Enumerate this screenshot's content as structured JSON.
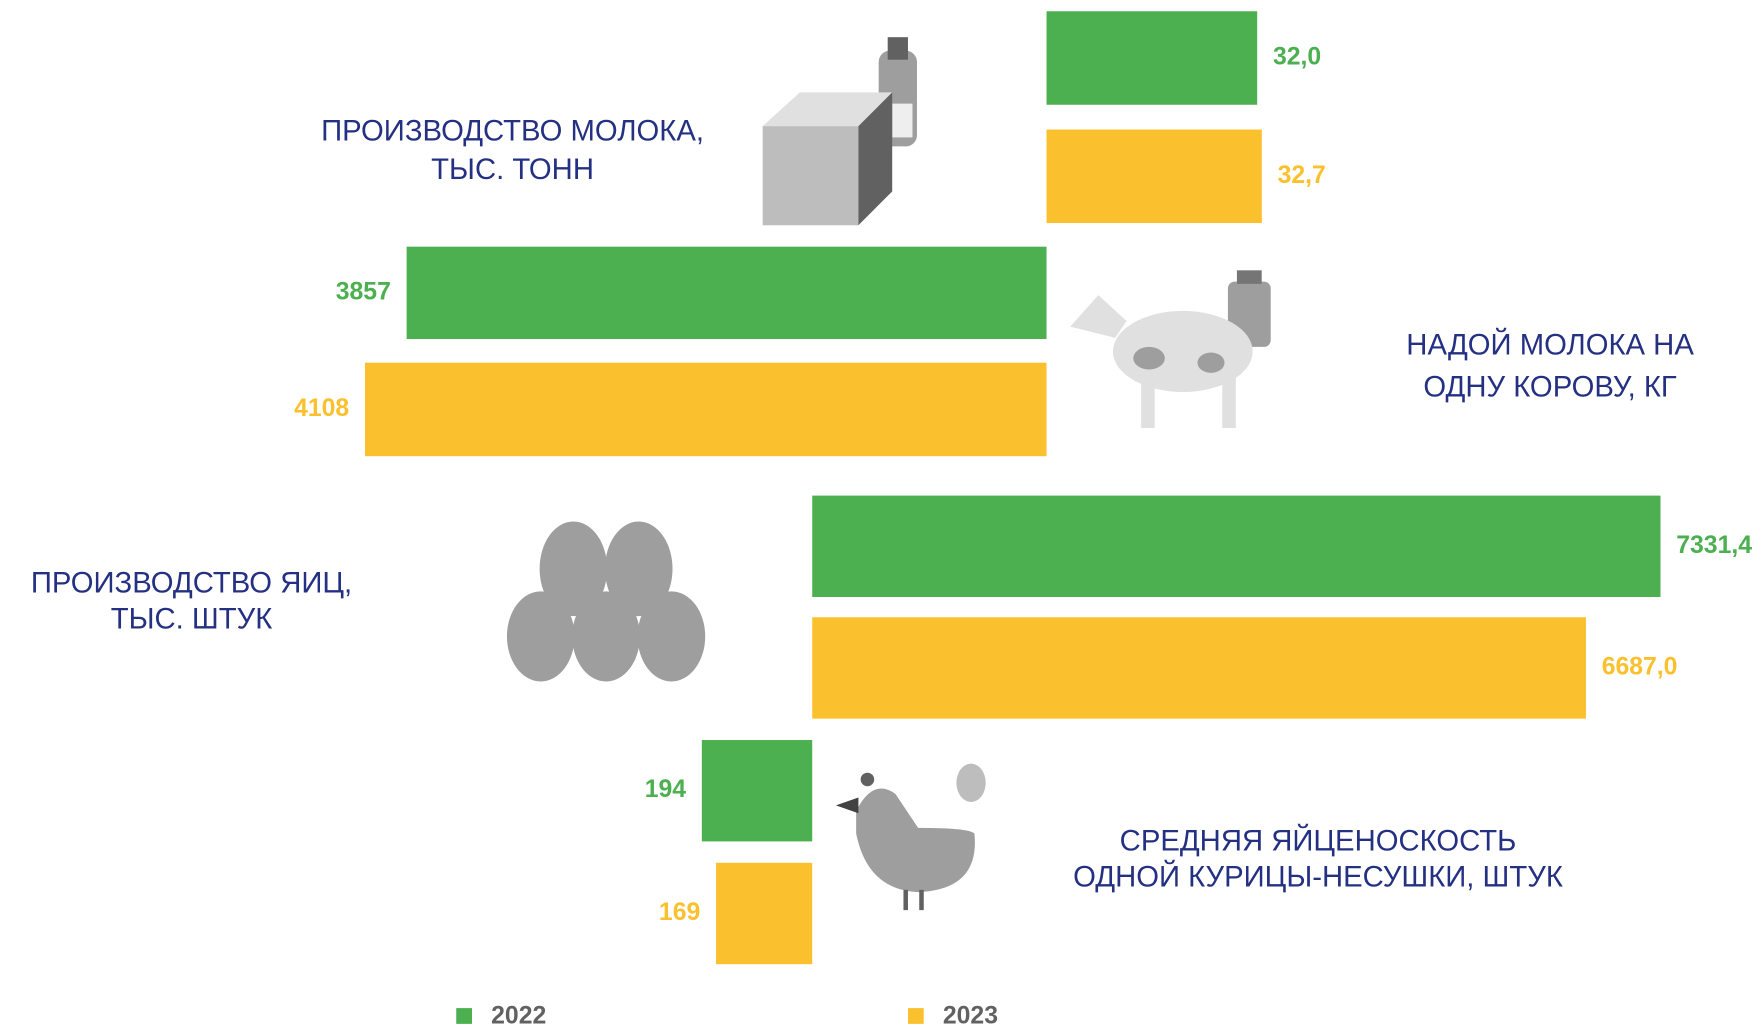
{
  "chart_data": [
    {
      "type": "bar",
      "title": [
        "ПРОИЗВОДСТВО МОЛОКА,",
        "ТЫС. ТОНН"
      ],
      "series": [
        {
          "name": "2022",
          "color": "#4caf50",
          "values": [
            32.0
          ],
          "value_labels": [
            "32,0"
          ]
        },
        {
          "name": "2023",
          "color": "#fbc02d",
          "values": [
            32.7
          ],
          "value_labels": [
            "32,7"
          ]
        }
      ]
    },
    {
      "type": "bar",
      "title": [
        "НАДОЙ МОЛОКА НА",
        "ОДНУ КОРОВУ, КГ"
      ],
      "series": [
        {
          "name": "2022",
          "color": "#4caf50",
          "values": [
            3857
          ]
        },
        {
          "name": "2023",
          "color": "#fbc02d",
          "values": [
            4108
          ]
        }
      ]
    },
    {
      "type": "bar",
      "title": [
        "ПРОИЗВОДСТВО ЯИЦ,",
        "ТЫС. ШТУК"
      ],
      "series": [
        {
          "name": "2022",
          "color": "#4caf50",
          "values": [
            7331.4
          ],
          "value_labels": [
            "7331,4"
          ]
        },
        {
          "name": "2023",
          "color": "#fbc02d",
          "values": [
            6687.0
          ],
          "value_labels": [
            "6687,0"
          ]
        }
      ]
    },
    {
      "type": "bar",
      "title": [
        "СРЕДНЯЯ ЯЙЦЕНОСКОСТЬ",
        "ОДНОЙ КУРИЦЫ-НЕСУШКИ, ШТУК"
      ],
      "series": [
        {
          "name": "2022",
          "color": "#4caf50",
          "values": [
            194
          ]
        },
        {
          "name": "2023",
          "color": "#fbc02d",
          "values": [
            169
          ]
        }
      ]
    }
  ]
}
